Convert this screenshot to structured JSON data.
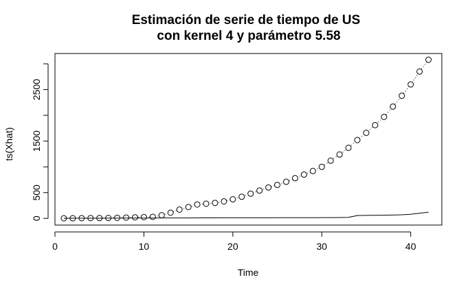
{
  "chart_data": {
    "type": "scatter",
    "title": "Estimación de serie de tiempo de US",
    "subtitle": "con kernel 4 y parámetro 5.58",
    "xlabel": "Time",
    "ylabel": "ts(Xhat)",
    "xlim": [
      0,
      43.5
    ],
    "ylim": [
      -130,
      3200
    ],
    "xticks": [
      0,
      10,
      20,
      30,
      40
    ],
    "yticks": [
      0,
      500,
      1500,
      2500
    ],
    "y_minor_ticks": [
      1000,
      2000,
      3000
    ],
    "grid": false,
    "legend": "none",
    "x": [
      1,
      2,
      3,
      4,
      5,
      6,
      7,
      8,
      9,
      10,
      11,
      12,
      13,
      14,
      15,
      16,
      17,
      18,
      19,
      20,
      21,
      22,
      23,
      24,
      25,
      26,
      27,
      28,
      29,
      30,
      31,
      32,
      33,
      34,
      35,
      36,
      37,
      38,
      39,
      40,
      41,
      42
    ],
    "series": [
      {
        "style": "points-with-dotted-line",
        "values": [
          2,
          3,
          4,
          5,
          6,
          8,
          10,
          15,
          20,
          25,
          30,
          60,
          110,
          170,
          220,
          270,
          285,
          300,
          330,
          370,
          420,
          480,
          540,
          600,
          650,
          710,
          780,
          850,
          920,
          1000,
          1120,
          1240,
          1370,
          1520,
          1660,
          1810,
          1970,
          2170,
          2380,
          2600,
          2850,
          3080
        ]
      },
      {
        "style": "line",
        "values": [
          2,
          3,
          3,
          4,
          4,
          5,
          5,
          6,
          6,
          7,
          7,
          8,
          8,
          9,
          9,
          10,
          10,
          10,
          11,
          11,
          11,
          12,
          12,
          12,
          13,
          13,
          13,
          14,
          14,
          15,
          15,
          16,
          20,
          55,
          58,
          60,
          62,
          65,
          70,
          80,
          100,
          120
        ]
      }
    ]
  }
}
